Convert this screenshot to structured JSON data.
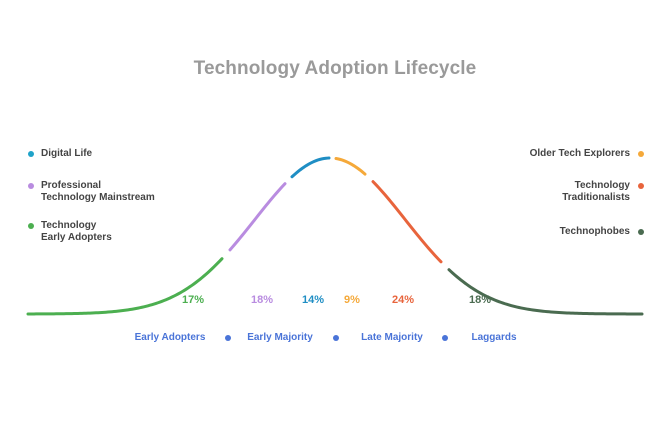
{
  "title": "Technology Adoption Lifecycle",
  "legend_left": [
    {
      "line1": "Digital Life",
      "line2": "",
      "color": "#1fa3c9"
    },
    {
      "line1": "Professional",
      "line2": "Technology Mainstream",
      "color": "#b98ce0"
    },
    {
      "line1": "Technology",
      "line2": "Early Adopters",
      "color": "#4caf50"
    }
  ],
  "legend_right": [
    {
      "line1": "Older Tech Explorers",
      "line2": "",
      "color": "#f5a93a"
    },
    {
      "line1": "Technology",
      "line2": "Traditionalists",
      "color": "#e8643c"
    },
    {
      "line1": "Technophobes",
      "line2": "",
      "color": "#4a6b50"
    }
  ],
  "segments": [
    {
      "name": "Technology Early Adopters",
      "percent": "17%",
      "color": "#4caf50"
    },
    {
      "name": "Professional Technology Mainstream",
      "percent": "18%",
      "color": "#b98ce0"
    },
    {
      "name": "Digital Life",
      "percent": "14%",
      "color": "#1f8ec4"
    },
    {
      "name": "Older Tech Explorers",
      "percent": "9%",
      "color": "#f5a93a"
    },
    {
      "name": "Technology Traditionalists",
      "percent": "24%",
      "color": "#e8643c"
    },
    {
      "name": "Technophobes",
      "percent": "18%",
      "color": "#4a6b50"
    }
  ],
  "stages": [
    "Early Adopters",
    "Early Majority",
    "Late Majority",
    "Laggards"
  ],
  "stage_color": "#4a74d8"
}
